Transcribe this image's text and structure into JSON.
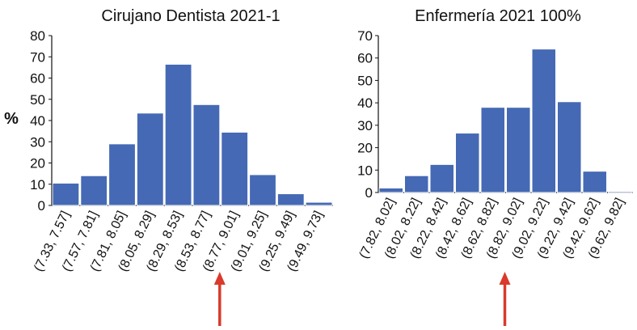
{
  "colors": {
    "bar": "#4569b4",
    "bar_edge": "#ffffff",
    "axis": "#111111",
    "arrow": "#d93a2b"
  },
  "chart_data": [
    {
      "type": "bar",
      "title": "Cirujano Dentista 2021-1",
      "ylabel": "%",
      "xlabel": "",
      "ylim": [
        0,
        80
      ],
      "yticks": [
        0,
        10,
        20,
        30,
        40,
        50,
        60,
        70,
        80
      ],
      "grid": false,
      "categories": [
        "(7.33, 7.57]",
        "(7.57, 7.81]",
        "(7.81, 8.05]",
        "(8.05, 8.29]",
        "(8.29, 8.53]",
        "(8.53, 8.77]",
        "(8.77, 9.01]",
        "(9.01, 9.25]",
        "(9.25, 9.49]",
        "(9.49, 9.73]"
      ],
      "values": [
        10.5,
        14,
        29,
        43.5,
        66.5,
        47.5,
        34.5,
        14.5,
        5.5,
        1.5
      ],
      "marker_arrow_between": [
        5,
        6
      ]
    },
    {
      "type": "bar",
      "title": "Enfermería 2021  100%",
      "ylabel": "",
      "xlabel": "",
      "ylim": [
        0,
        70
      ],
      "yticks": [
        0,
        10,
        20,
        30,
        40,
        50,
        60,
        70
      ],
      "grid": false,
      "categories": [
        "(7.82, 8.02]",
        "(8.02, 8.22]",
        "(8.22, 8.42]",
        "(8.42, 8.62]",
        "(8.62, 8.82]",
        "(8.82, 9.02]",
        "(9.02, 9.22]",
        "(9.22, 9.42]",
        "(9.42, 9.62]",
        "(9.62, 9.82]"
      ],
      "values": [
        2,
        7.5,
        12.5,
        26.5,
        38,
        38,
        64,
        40.5,
        9.5,
        0.5
      ],
      "marker_arrow_between": [
        4,
        5
      ]
    }
  ]
}
